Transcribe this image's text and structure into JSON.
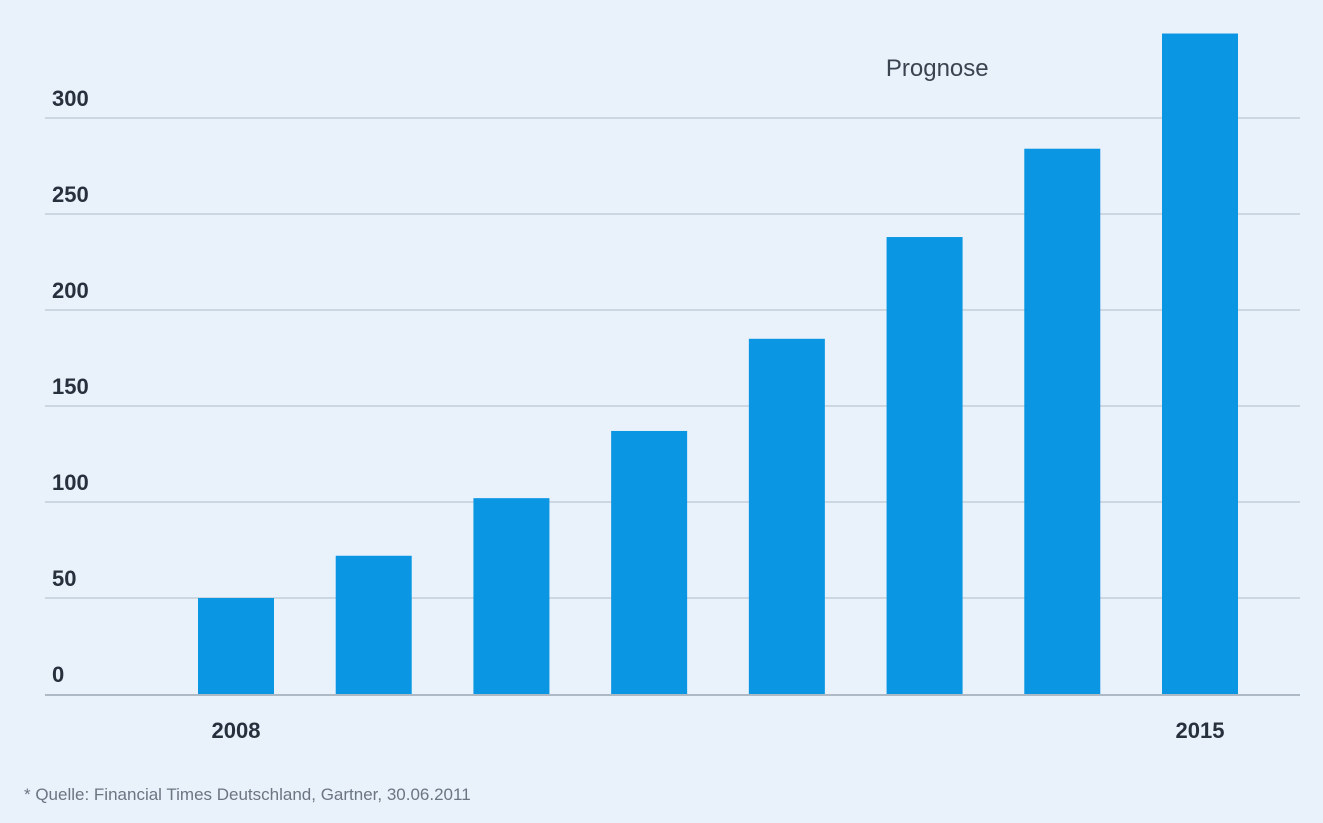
{
  "chart_data": {
    "type": "bar",
    "title": "",
    "xlabel": "",
    "ylabel": "",
    "categories": [
      "2008",
      "",
      "",
      "",
      "",
      "",
      "",
      "2015"
    ],
    "values": [
      50,
      72,
      102,
      137,
      185,
      238,
      284,
      344
    ],
    "ylim": [
      0,
      350
    ],
    "yticks": [
      0,
      50,
      100,
      150,
      200,
      250,
      300
    ],
    "ytick_labels": [
      "0",
      "50",
      "100",
      "150",
      "200",
      "250",
      "300"
    ],
    "grid": true,
    "legend": "none",
    "colors": {
      "bar": "#0a96e3",
      "grid": "#cdd7e2",
      "axis": "#aeb9c6",
      "background": "#e9f1fb"
    },
    "annotations": [
      {
        "text": "Prognose",
        "anchor_category_index": 5.3
      }
    ],
    "source_note": "* Quelle: Financial Times Deutschland, Gartner, 30.06.2011"
  }
}
